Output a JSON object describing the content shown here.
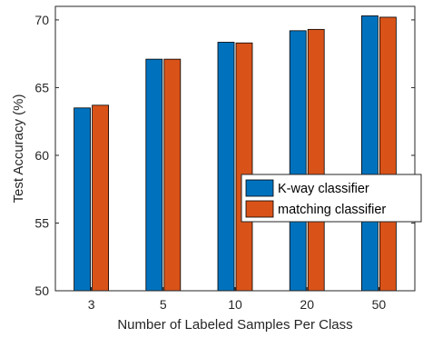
{
  "chart_data": {
    "type": "bar",
    "categories": [
      "3",
      "5",
      "10",
      "20",
      "50"
    ],
    "series": [
      {
        "name": "K-way classifier",
        "values": [
          63.5,
          67.1,
          68.35,
          69.2,
          70.3
        ],
        "color": "#0072BD"
      },
      {
        "name": "matching classifier",
        "values": [
          63.7,
          67.1,
          68.3,
          69.3,
          70.2
        ],
        "color": "#D95319"
      }
    ],
    "xlabel": "Number of Labeled Samples Per Class",
    "ylabel": "Test Accuracy (%)",
    "ylim": [
      50,
      71
    ],
    "yticks": [
      50,
      55,
      60,
      65,
      70
    ],
    "grid": false,
    "legend_position": "right"
  }
}
